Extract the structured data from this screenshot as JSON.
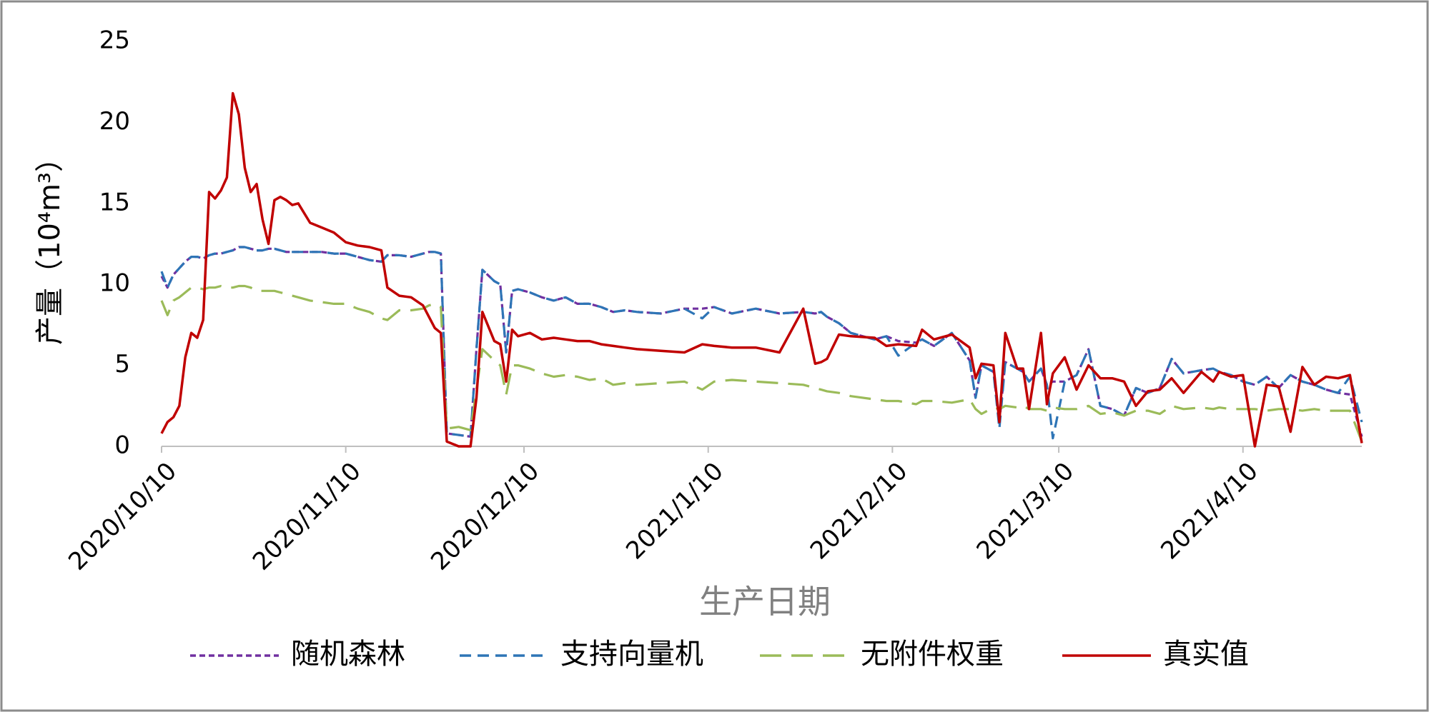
{
  "chart_data": {
    "type": "line",
    "ylabel": "产量（10⁴m³）",
    "xlabel": "生产日期",
    "x": [
      "2020/10/10",
      "2020/10/11",
      "2020/10/12",
      "2020/10/13",
      "2020/10/14",
      "2020/10/15",
      "2020/10/16",
      "2020/10/17",
      "2020/10/18",
      "2020/10/19",
      "2020/10/20",
      "2020/10/21",
      "2020/10/22",
      "2020/10/23",
      "2020/10/24",
      "2020/10/25",
      "2020/10/26",
      "2020/10/27",
      "2020/10/28",
      "2020/10/29",
      "2020/10/30",
      "2020/10/31",
      "2020/11/1",
      "2020/11/2",
      "2020/11/4",
      "2020/11/6",
      "2020/11/8",
      "2020/11/10",
      "2020/11/12",
      "2020/11/14",
      "2020/11/16",
      "2020/11/17",
      "2020/11/19",
      "2020/11/21",
      "2020/11/23",
      "2020/11/24",
      "2020/11/25",
      "2020/11/26",
      "2020/11/27",
      "2020/11/29",
      "2020/12/1",
      "2020/12/2",
      "2020/12/3",
      "2020/12/5",
      "2020/12/6",
      "2020/12/7",
      "2020/12/8",
      "2020/12/9",
      "2020/12/11",
      "2020/12/13",
      "2020/12/15",
      "2020/12/17",
      "2020/12/19",
      "2020/12/21",
      "2020/12/23",
      "2020/12/25",
      "2020/12/27",
      "2020/12/29",
      "2021/1/2",
      "2021/1/6",
      "2021/1/9",
      "2021/1/11",
      "2021/1/14",
      "2021/1/18",
      "2021/1/22",
      "2021/1/26",
      "2021/1/28",
      "2021/1/29",
      "2021/1/30",
      "2021/2/1",
      "2021/2/3",
      "2021/2/7",
      "2021/2/9",
      "2021/2/11",
      "2021/2/14",
      "2021/2/15",
      "2021/2/17",
      "2021/2/20",
      "2021/2/23",
      "2021/2/24",
      "2021/2/25",
      "2021/2/27",
      "2021/2/28",
      "2021/3/1",
      "2021/3/3",
      "2021/3/4",
      "2021/3/5",
      "2021/3/7",
      "2021/3/8",
      "2021/3/9",
      "2021/3/11",
      "2021/3/13",
      "2021/3/15",
      "2021/3/17",
      "2021/3/19",
      "2021/3/21",
      "2021/3/23",
      "2021/3/25",
      "2021/3/27",
      "2021/3/29",
      "2021/3/31",
      "2021/4/3",
      "2021/4/5",
      "2021/4/6",
      "2021/4/8",
      "2021/4/10",
      "2021/4/12",
      "2021/4/14",
      "2021/4/16",
      "2021/4/18",
      "2021/4/20",
      "2021/4/22",
      "2021/4/24",
      "2021/4/26",
      "2021/4/28",
      "2021/4/30"
    ],
    "series": [
      {
        "name": "随机森林",
        "color": "#7030a0",
        "line_style": "dotted",
        "values": [
          10.5,
          9.8,
          10.6,
          11.0,
          11.4,
          11.7,
          11.7,
          11.6,
          11.8,
          11.9,
          11.9,
          12.0,
          12.1,
          12.3,
          12.3,
          12.2,
          12.1,
          12.1,
          12.2,
          12.2,
          12.1,
          12.0,
          12.0,
          12.0,
          12.0,
          12.0,
          11.9,
          11.9,
          11.7,
          11.5,
          11.4,
          11.8,
          11.8,
          11.7,
          11.9,
          12.0,
          12.0,
          11.9,
          0.8,
          0.7,
          0.6,
          6.0,
          10.9,
          10.2,
          10.0,
          5.8,
          9.6,
          9.7,
          9.5,
          9.2,
          9.0,
          9.2,
          8.8,
          8.8,
          8.6,
          8.3,
          8.4,
          8.3,
          8.2,
          8.5,
          8.5,
          8.6,
          8.2,
          8.5,
          8.2,
          8.3,
          8.2,
          8.3,
          8.0,
          7.6,
          7.0,
          6.6,
          6.8,
          6.5,
          6.4,
          6.6,
          6.2,
          7.0,
          5.3,
          3.0,
          5.0,
          4.6,
          1.5,
          5.2,
          4.8,
          4.6,
          4.0,
          4.8,
          3.8,
          4.0,
          4.0,
          4.4,
          6.0,
          2.5,
          2.3,
          1.9,
          3.6,
          3.3,
          3.6,
          5.4,
          4.5,
          4.7,
          4.8,
          4.6,
          4.4,
          4.0,
          3.8,
          4.3,
          3.6,
          4.4,
          4.0,
          3.8,
          3.5,
          3.3,
          3.2,
          0.6
        ]
      },
      {
        "name": "支持向量机",
        "color": "#2e75b6",
        "line_style": "dashed",
        "values": [
          10.8,
          9.8,
          10.6,
          11.0,
          11.4,
          11.7,
          11.7,
          11.6,
          11.8,
          11.9,
          11.9,
          12.0,
          12.1,
          12.3,
          12.3,
          12.2,
          12.1,
          12.1,
          12.2,
          12.2,
          12.1,
          12.0,
          12.0,
          12.0,
          12.0,
          12.0,
          11.9,
          11.9,
          11.7,
          11.5,
          11.4,
          11.8,
          11.8,
          11.7,
          11.9,
          12.0,
          12.0,
          11.9,
          0.8,
          0.7,
          0.6,
          6.0,
          10.9,
          10.2,
          10.0,
          5.8,
          9.6,
          9.7,
          9.5,
          9.2,
          9.0,
          9.2,
          8.8,
          8.8,
          8.6,
          8.3,
          8.4,
          8.3,
          8.2,
          8.5,
          7.9,
          8.6,
          8.2,
          8.5,
          8.2,
          8.3,
          8.2,
          8.3,
          8.0,
          7.6,
          7.0,
          6.6,
          6.8,
          5.6,
          6.4,
          6.6,
          6.2,
          7.0,
          5.3,
          3.0,
          5.0,
          4.6,
          1.1,
          5.2,
          4.8,
          4.6,
          4.0,
          4.8,
          3.8,
          0.5,
          4.0,
          4.4,
          6.0,
          2.5,
          2.3,
          1.9,
          3.6,
          3.3,
          3.6,
          5.4,
          4.5,
          4.7,
          4.8,
          4.6,
          4.4,
          4.0,
          3.8,
          4.3,
          3.6,
          4.4,
          4.0,
          3.8,
          3.5,
          3.3,
          4.3,
          1.5
        ]
      },
      {
        "name": "无附件权重",
        "color": "#9bbb59",
        "line_style": "long-dashed",
        "values": [
          9.0,
          8.1,
          9.0,
          9.2,
          9.5,
          9.8,
          9.8,
          9.7,
          9.8,
          9.8,
          9.9,
          9.8,
          9.8,
          9.9,
          9.9,
          9.8,
          9.6,
          9.6,
          9.6,
          9.6,
          9.5,
          9.4,
          9.3,
          9.2,
          9.0,
          8.9,
          8.8,
          8.8,
          8.5,
          8.3,
          7.9,
          7.8,
          8.4,
          8.4,
          8.5,
          8.7,
          8.8,
          8.6,
          1.1,
          1.2,
          1.0,
          3.5,
          6.0,
          5.3,
          5.0,
          3.2,
          5.0,
          5.0,
          4.8,
          4.5,
          4.3,
          4.4,
          4.3,
          4.1,
          4.2,
          3.8,
          3.9,
          3.8,
          3.9,
          4.0,
          3.5,
          4.0,
          4.1,
          4.0,
          3.9,
          3.8,
          3.6,
          3.5,
          3.4,
          3.3,
          3.1,
          2.9,
          2.8,
          2.8,
          2.6,
          2.8,
          2.8,
          2.7,
          2.9,
          2.3,
          2.0,
          2.4,
          2.3,
          2.5,
          2.4,
          2.5,
          2.3,
          2.3,
          2.2,
          2.4,
          2.3,
          2.3,
          2.5,
          2.0,
          2.1,
          1.9,
          2.2,
          2.2,
          2.0,
          2.5,
          2.3,
          2.4,
          2.3,
          2.4,
          2.3,
          2.3,
          2.3,
          2.2,
          2.3,
          2.3,
          2.2,
          2.3,
          2.2,
          2.2,
          2.2,
          0.3
        ]
      },
      {
        "name": "真实值",
        "color": "#c00000",
        "line_style": "solid",
        "values": [
          0.8,
          1.5,
          1.8,
          2.5,
          5.5,
          7.0,
          6.7,
          7.8,
          15.7,
          15.3,
          15.8,
          16.6,
          21.8,
          20.5,
          17.2,
          15.7,
          16.2,
          14.0,
          12.5,
          15.2,
          15.4,
          15.2,
          14.9,
          15.0,
          13.8,
          13.5,
          13.2,
          12.6,
          12.4,
          12.3,
          12.1,
          9.8,
          9.3,
          9.2,
          8.7,
          8.0,
          7.3,
          7.0,
          0.3,
          0,
          0,
          3.0,
          8.3,
          6.5,
          6.3,
          4.0,
          7.2,
          6.8,
          7.0,
          6.6,
          6.7,
          6.6,
          6.5,
          6.5,
          6.3,
          6.2,
          6.1,
          6.0,
          5.9,
          5.8,
          6.3,
          6.2,
          6.1,
          6.1,
          5.8,
          8.5,
          5.1,
          5.2,
          5.4,
          6.9,
          6.8,
          6.7,
          6.2,
          6.3,
          6.2,
          7.2,
          6.6,
          6.9,
          6.1,
          4.2,
          5.1,
          5.0,
          1.5,
          7.0,
          4.8,
          4.8,
          2.3,
          7.0,
          2.6,
          4.5,
          5.5,
          3.5,
          5.0,
          4.2,
          4.2,
          4.0,
          2.5,
          3.4,
          3.5,
          4.2,
          3.3,
          4.6,
          4.0,
          4.6,
          4.3,
          4.4,
          0.0,
          3.8,
          3.7,
          0.9,
          4.9,
          3.8,
          4.3,
          4.2,
          4.4,
          0.2
        ]
      }
    ],
    "xlim": [
      "2020/10/10",
      "2021/4/30"
    ],
    "xticks": [
      "2020/10/10",
      "2020/11/10",
      "2020/12/10",
      "2021/1/10",
      "2021/2/10",
      "2021/3/10",
      "2021/4/10"
    ],
    "ylim": [
      0,
      25
    ],
    "yticks": [
      0,
      5,
      10,
      15,
      20,
      25
    ],
    "grid": false,
    "legend": "bottom"
  }
}
